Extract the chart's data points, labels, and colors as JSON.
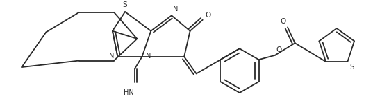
{
  "bg_color": "#ffffff",
  "line_color": "#2a2a2a",
  "line_width": 1.3,
  "figsize": [
    5.6,
    1.56
  ],
  "dpi": 100,
  "xlim": [
    0,
    10.0
  ],
  "ylim": [
    0,
    2.8
  ]
}
